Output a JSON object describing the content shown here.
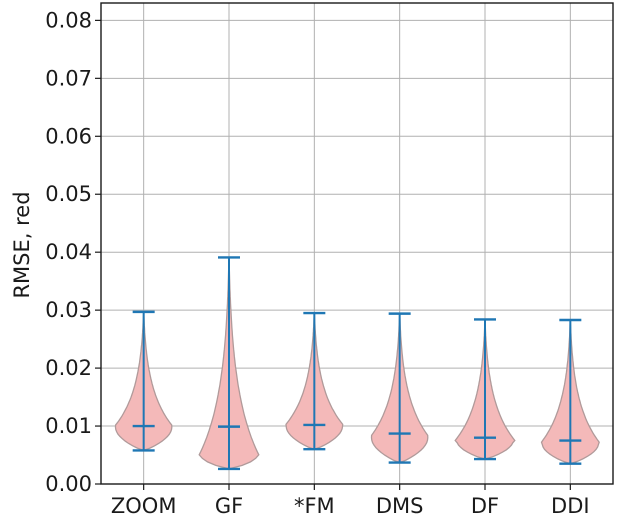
{
  "chart_data": {
    "type": "violin",
    "title": "",
    "xlabel": "",
    "ylabel": "RMSE, red",
    "ylim": [
      0,
      0.083
    ],
    "yticks": [
      "0.00",
      "0.01",
      "0.02",
      "0.03",
      "0.04",
      "0.05",
      "0.06",
      "0.07",
      "0.08"
    ],
    "ytick_values": [
      0,
      0.01,
      0.02,
      0.03,
      0.04,
      0.05,
      0.06,
      0.07,
      0.08
    ],
    "grid": true,
    "categories": [
      "ZOOM",
      "GF",
      "*FM",
      "DMS",
      "DF",
      "DDI"
    ],
    "series": [
      {
        "category": "ZOOM",
        "min": 0.0058,
        "median": 0.01,
        "max": 0.0297,
        "mode": 0.0098
      },
      {
        "category": "GF",
        "min": 0.0026,
        "median": 0.0099,
        "max": 0.0391,
        "mode": 0.005
      },
      {
        "category": "*FM",
        "min": 0.006,
        "median": 0.0102,
        "max": 0.0295,
        "mode": 0.01
      },
      {
        "category": "DMS",
        "min": 0.0037,
        "median": 0.0087,
        "max": 0.0294,
        "mode": 0.008
      },
      {
        "category": "DF",
        "min": 0.0043,
        "median": 0.008,
        "max": 0.0284,
        "mode": 0.0075
      },
      {
        "category": "DDI",
        "min": 0.0035,
        "median": 0.0075,
        "max": 0.0283,
        "mode": 0.007
      }
    ],
    "colors": {
      "violin_fill": "#f4b9b9",
      "violin_edge": "#b09a9a",
      "line": "#1f77b4",
      "grid": "#b0b0b0",
      "axis": "#1a1a1a"
    }
  }
}
